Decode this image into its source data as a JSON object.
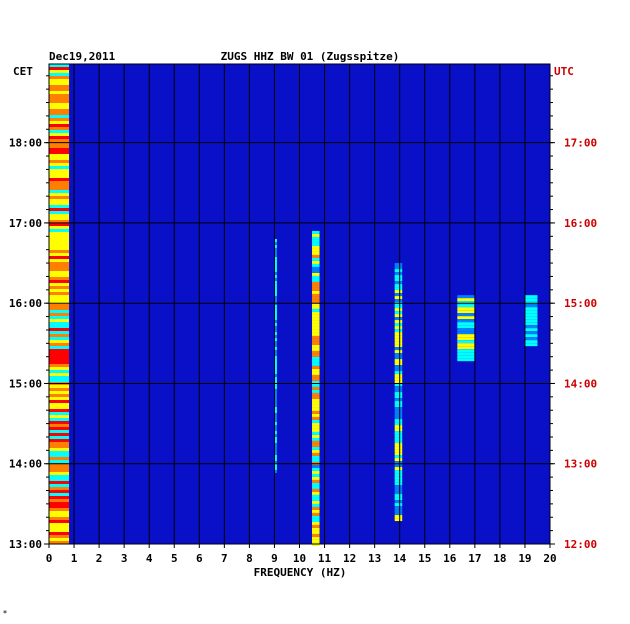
{
  "chart_data": {
    "type": "heatmap",
    "date": "Dec19,2011",
    "title": "ZUGS HHZ BW 01 (Zugsspitze)",
    "left_axis_label": "CET",
    "right_axis_label": "UTC",
    "xlabel": "FREQUENCY (HZ)",
    "xlim": [
      0,
      20
    ],
    "x_ticks": [
      "0",
      "1",
      "2",
      "3",
      "4",
      "5",
      "6",
      "7",
      "8",
      "9",
      "10",
      "11",
      "12",
      "13",
      "14",
      "15",
      "16",
      "17",
      "18",
      "19",
      "20"
    ],
    "left_ticks": [
      {
        "hour": 13,
        "label": "13:00"
      },
      {
        "hour": 14,
        "label": "14:00"
      },
      {
        "hour": 15,
        "label": "15:00"
      },
      {
        "hour": 16,
        "label": "16:00"
      },
      {
        "hour": 17,
        "label": "17:00"
      },
      {
        "hour": 18,
        "label": "18:00"
      }
    ],
    "right_ticks": [
      {
        "hour": 13,
        "label": "12:00"
      },
      {
        "hour": 14,
        "label": "13:00"
      },
      {
        "hour": 15,
        "label": "14:00"
      },
      {
        "hour": 16,
        "label": "15:00"
      },
      {
        "hour": 17,
        "label": "16:00"
      },
      {
        "hour": 18,
        "label": "17:00"
      }
    ],
    "time_range_cet": [
      13.0,
      18.98
    ],
    "grid": true,
    "colormap": [
      "#00008b",
      "#0000ff",
      "#0080ff",
      "#00ffff",
      "#ffff00",
      "#ff8000",
      "#ff0000"
    ],
    "background_color": "#0a10c8",
    "left_label_color": "#000000",
    "right_label_color": "#cc0000",
    "energy_bands": [
      {
        "freq": [
          0.0,
          0.8
        ],
        "time_cet": [
          13.0,
          18.98
        ],
        "level": 0.85
      },
      {
        "freq": [
          9.0,
          9.1
        ],
        "time_cet": [
          13.9,
          16.8
        ],
        "level": 0.5
      },
      {
        "freq": [
          10.5,
          10.8
        ],
        "time_cet": [
          13.0,
          16.9
        ],
        "level": 0.75
      },
      {
        "freq": [
          13.8,
          14.1
        ],
        "time_cet": [
          13.3,
          16.5
        ],
        "level": 0.6
      },
      {
        "freq": [
          16.3,
          17.0
        ],
        "time_cet": [
          15.3,
          16.1
        ],
        "level": 0.6
      },
      {
        "freq": [
          19.0,
          19.5
        ],
        "time_cet": [
          15.5,
          16.1
        ],
        "level": 0.45
      }
    ]
  },
  "footer_mark": "*"
}
